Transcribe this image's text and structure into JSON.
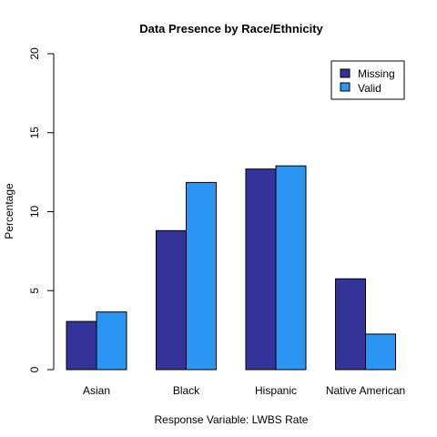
{
  "chart_data": {
    "type": "bar",
    "title": "Data Presence by Race/Ethnicity",
    "xlabel": "Response Variable: LWBS Rate",
    "ylabel": "Percentage",
    "categories": [
      "Asian",
      "Black",
      "Hispanic",
      "Native American"
    ],
    "series": [
      {
        "name": "Missing",
        "color": "#333399",
        "values": [
          3.05,
          8.8,
          12.7,
          5.75
        ]
      },
      {
        "name": "Valid",
        "color": "#2b95f3",
        "values": [
          3.65,
          11.85,
          12.9,
          2.25
        ]
      }
    ],
    "ylim": [
      0,
      20
    ],
    "yticks": [
      "0",
      "5",
      "10",
      "15",
      "20"
    ],
    "legend_position": "top-right",
    "grid": false
  }
}
